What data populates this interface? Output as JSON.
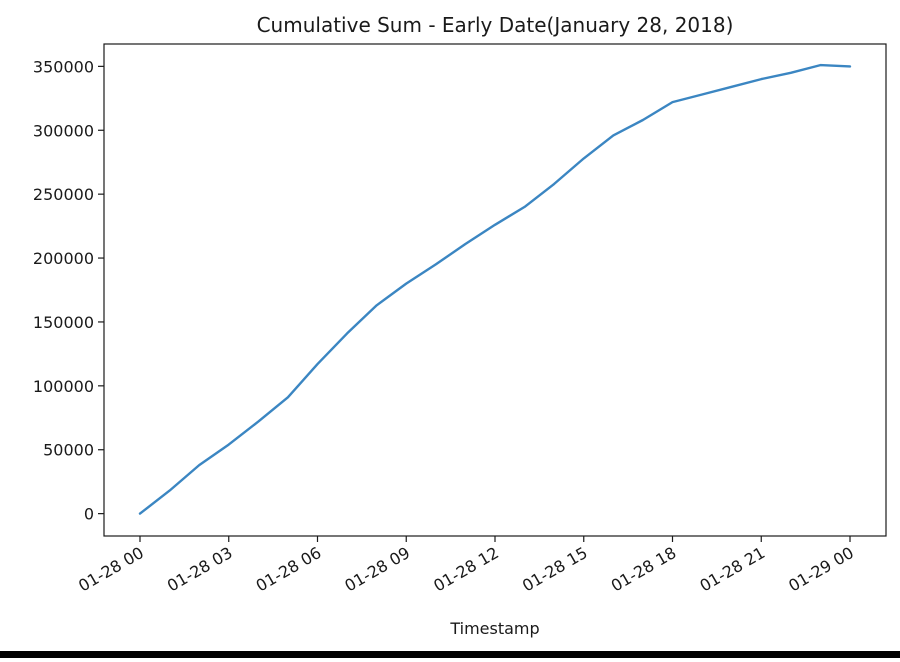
{
  "chart_data": {
    "type": "line",
    "title": "Cumulative Sum - Early Date(January 28, 2018)",
    "xlabel": "Timestamp",
    "ylabel": "",
    "xlim": [
      "2018-01-27 22:47",
      "2018-01-29 01:13"
    ],
    "ylim": [
      -17500,
      367500
    ],
    "x_ticks": [
      "2018-01-28 00:00",
      "2018-01-28 03:00",
      "2018-01-28 06:00",
      "2018-01-28 09:00",
      "2018-01-28 12:00",
      "2018-01-28 15:00",
      "2018-01-28 18:00",
      "2018-01-28 21:00",
      "2018-01-29 00:00"
    ],
    "x_tick_labels": [
      "01-28 00",
      "01-28 03",
      "01-28 06",
      "01-28 09",
      "01-28 12",
      "01-28 15",
      "01-28 18",
      "01-28 21",
      "01-29 00"
    ],
    "y_ticks": [
      0,
      50000,
      100000,
      150000,
      200000,
      250000,
      300000,
      350000
    ],
    "y_tick_labels": [
      "0",
      "50000",
      "100000",
      "150000",
      "200000",
      "250000",
      "300000",
      "350000"
    ],
    "grid": false,
    "series": [
      {
        "color": "#3b86c2",
        "points": [
          [
            "2018-01-28 00:00",
            0
          ],
          [
            "2018-01-28 01:00",
            18000
          ],
          [
            "2018-01-28 02:00",
            38000
          ],
          [
            "2018-01-28 03:00",
            54000
          ],
          [
            "2018-01-28 04:00",
            72000
          ],
          [
            "2018-01-28 05:00",
            91000
          ],
          [
            "2018-01-28 06:00",
            117000
          ],
          [
            "2018-01-28 07:00",
            141000
          ],
          [
            "2018-01-28 08:00",
            163000
          ],
          [
            "2018-01-28 09:00",
            180000
          ],
          [
            "2018-01-28 10:00",
            195000
          ],
          [
            "2018-01-28 11:00",
            211000
          ],
          [
            "2018-01-28 12:00",
            226000
          ],
          [
            "2018-01-28 13:00",
            240000
          ],
          [
            "2018-01-28 14:00",
            258000
          ],
          [
            "2018-01-28 15:00",
            278000
          ],
          [
            "2018-01-28 16:00",
            296000
          ],
          [
            "2018-01-28 17:00",
            308000
          ],
          [
            "2018-01-28 18:00",
            322000
          ],
          [
            "2018-01-28 19:00",
            328000
          ],
          [
            "2018-01-28 20:00",
            334000
          ],
          [
            "2018-01-28 21:00",
            340000
          ],
          [
            "2018-01-28 22:00",
            345000
          ],
          [
            "2018-01-28 23:00",
            351000
          ],
          [
            "2018-01-29 00:00",
            350000
          ]
        ]
      }
    ]
  }
}
